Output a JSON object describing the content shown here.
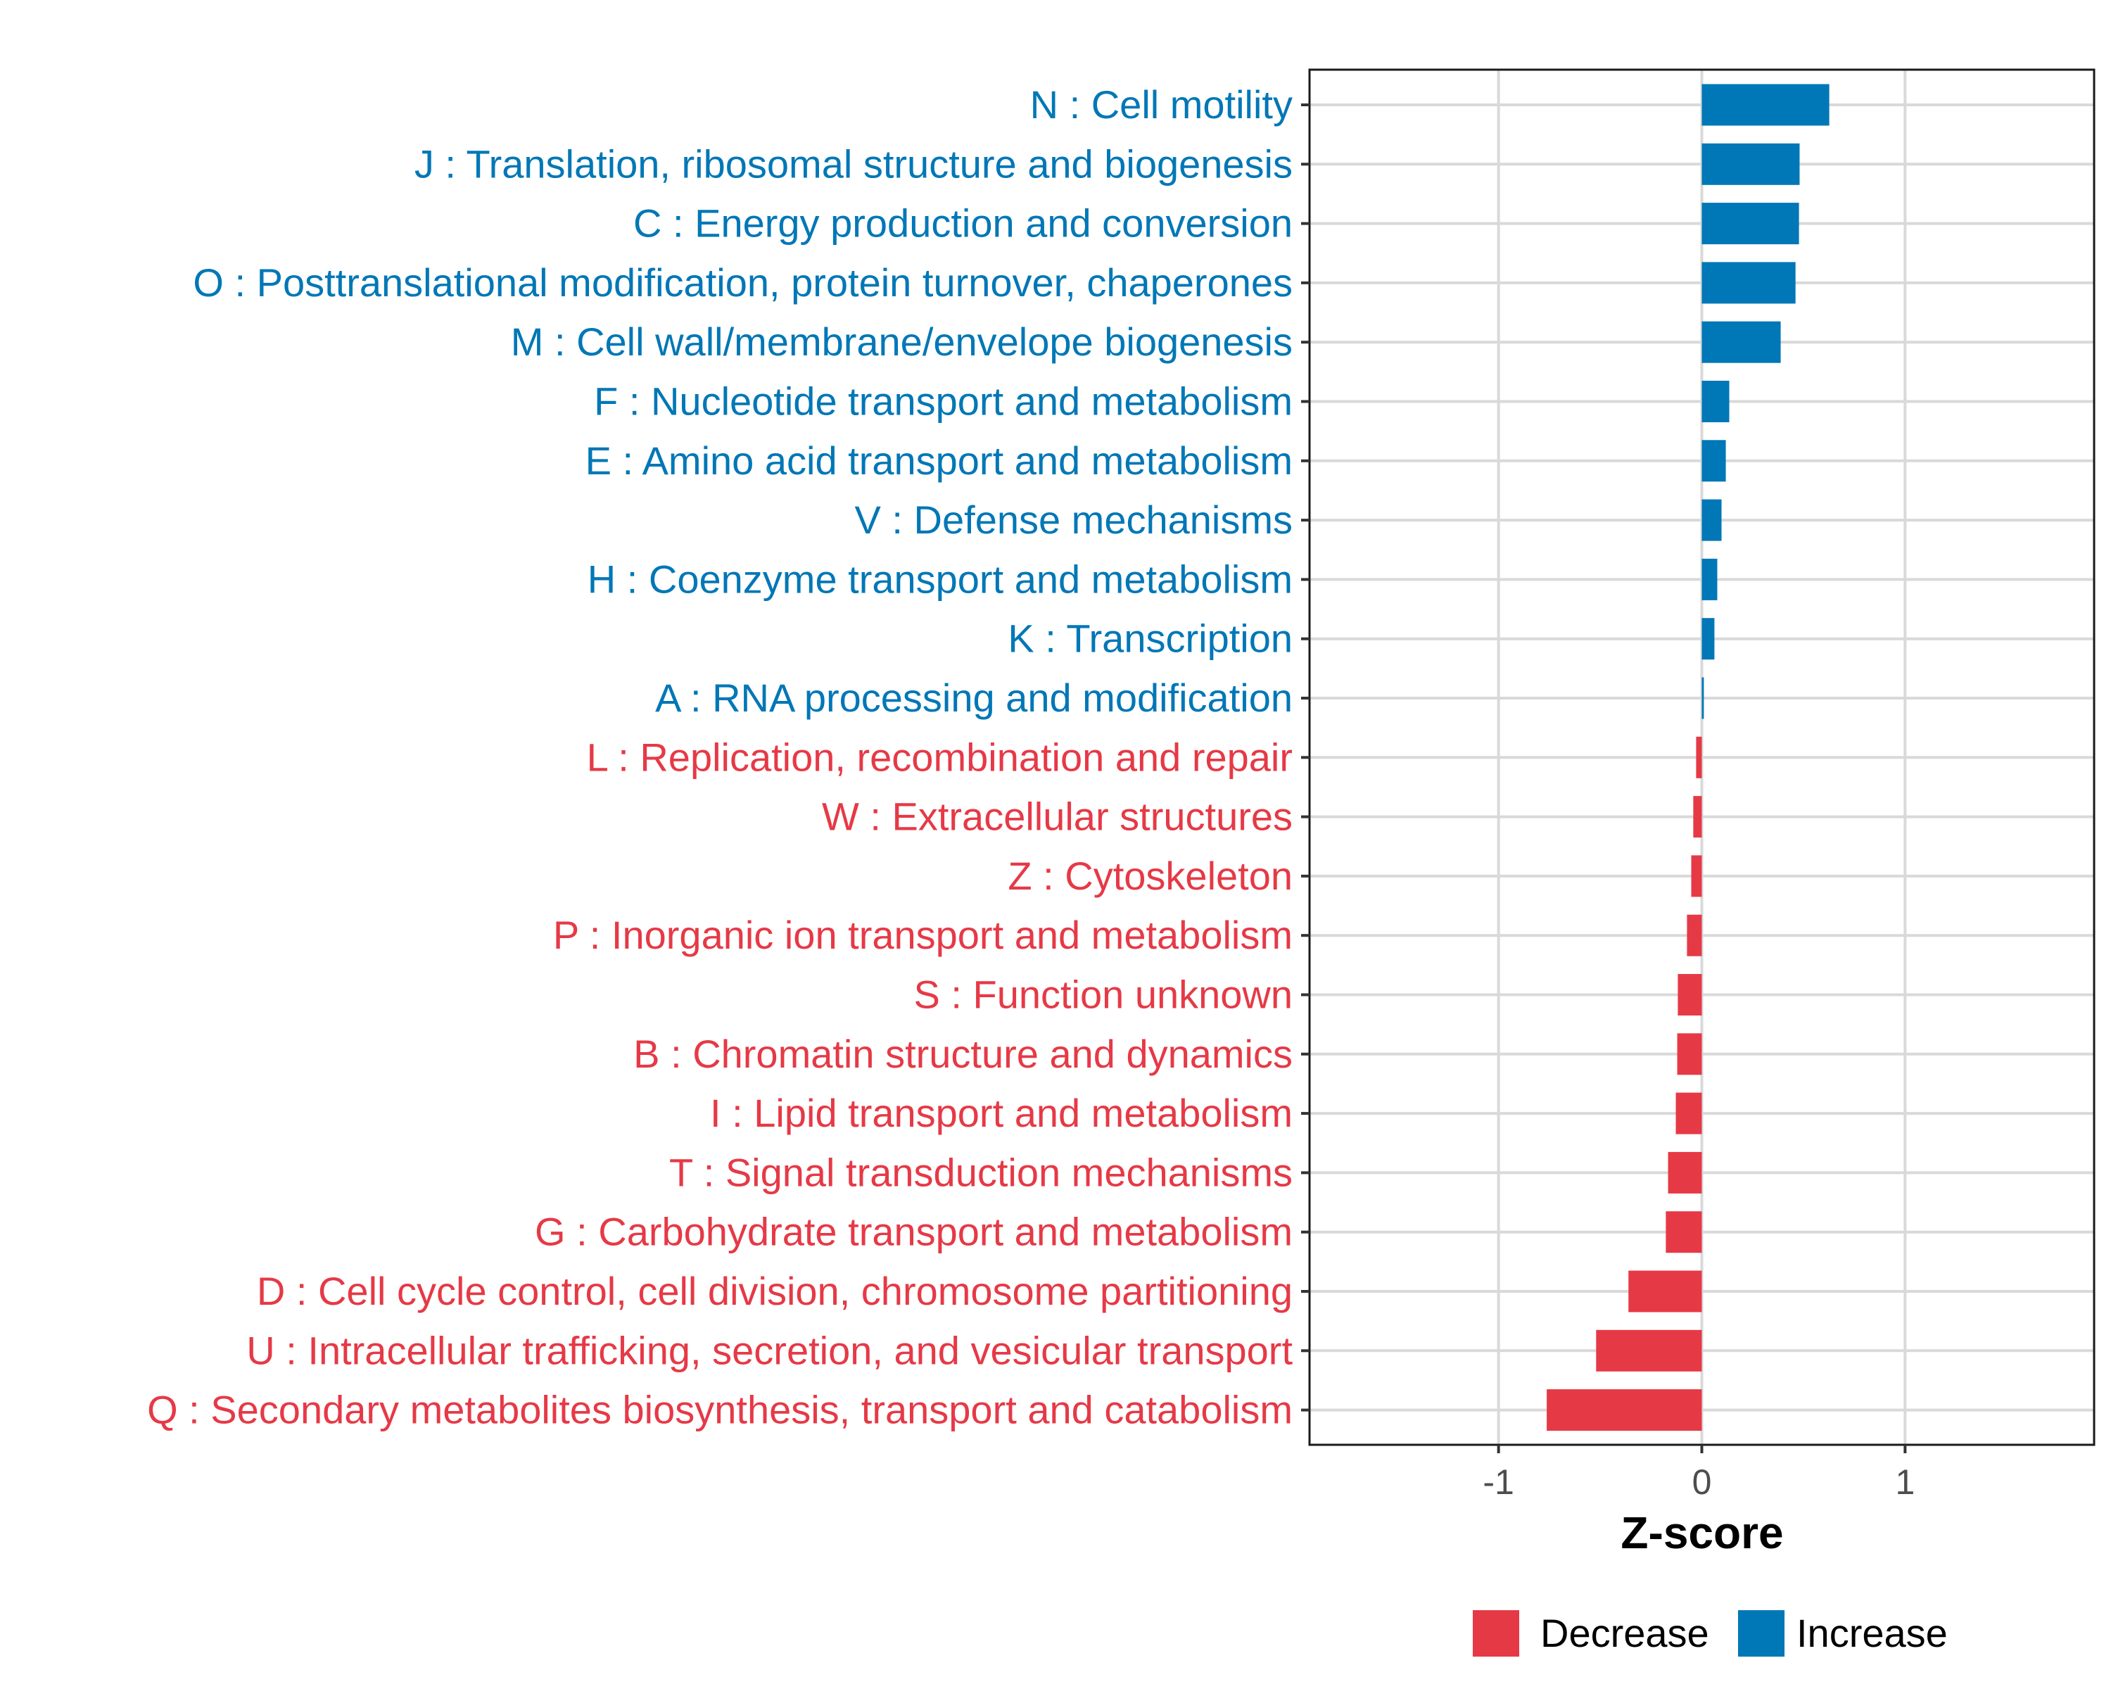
{
  "chart_data": {
    "type": "bar",
    "orientation": "horizontal",
    "title": "",
    "xlabel": "Z-score",
    "ylabel": "",
    "xlim": [
      -1.93,
      1.93
    ],
    "xticks": [
      -1,
      0,
      1
    ],
    "xtick_labels": [
      "-1",
      "0",
      "1"
    ],
    "grid": true,
    "legend_position": "bottom",
    "colors": {
      "Decrease": "#E63946",
      "Increase": "#0077B6"
    },
    "categories": [
      "N : Cell motility",
      "J : Translation, ribosomal structure and biogenesis",
      "C : Energy production and conversion",
      "O : Posttranslational modification, protein turnover, chaperones",
      "M : Cell wall/membrane/envelope biogenesis",
      "F : Nucleotide transport and metabolism",
      "E : Amino acid transport and metabolism",
      "V : Defense mechanisms",
      "H : Coenzyme transport and metabolism",
      "K : Transcription",
      "A : RNA processing and modification",
      "L : Replication, recombination and repair",
      "W : Extracellular structures",
      "Z : Cytoskeleton",
      "P : Inorganic ion transport and metabolism",
      "S : Function unknown",
      "B : Chromatin structure and dynamics",
      "I : Lipid transport and metabolism",
      "T : Signal transduction mechanisms",
      "G : Carbohydrate transport and metabolism",
      "D : Cell cycle control, cell division, chromosome partitioning",
      "U : Intracellular trafficking, secretion, and vesicular transport",
      "Q : Secondary metabolites biosynthesis, transport and catabolism"
    ],
    "values": [
      0.627,
      0.481,
      0.478,
      0.461,
      0.388,
      0.135,
      0.118,
      0.097,
      0.076,
      0.062,
      0.01,
      -0.028,
      -0.042,
      -0.052,
      -0.073,
      -0.118,
      -0.121,
      -0.128,
      -0.166,
      -0.177,
      -0.361,
      -0.52,
      -0.763
    ],
    "groups": [
      "Increase",
      "Increase",
      "Increase",
      "Increase",
      "Increase",
      "Increase",
      "Increase",
      "Increase",
      "Increase",
      "Increase",
      "Increase",
      "Decrease",
      "Decrease",
      "Decrease",
      "Decrease",
      "Decrease",
      "Decrease",
      "Decrease",
      "Decrease",
      "Decrease",
      "Decrease",
      "Decrease",
      "Decrease"
    ],
    "legend": [
      {
        "label": "Decrease",
        "color": "#E63946"
      },
      {
        "label": "Increase",
        "color": "#0077B6"
      }
    ]
  }
}
